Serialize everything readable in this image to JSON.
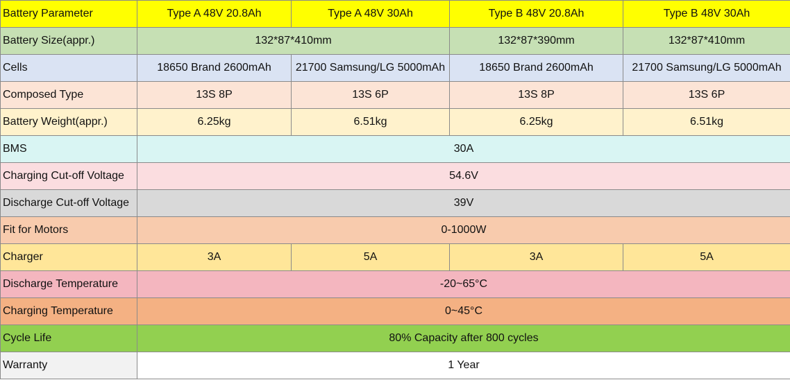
{
  "table": {
    "header": [
      "Battery Parameter",
      "Type A 48V 20.8Ah",
      "Type A 48V 30Ah",
      "Type B 48V 20.8Ah",
      "Type B 48V 30Ah"
    ],
    "rows": [
      {
        "label": "Battery Size(appr.)",
        "values": [
          "132*87*410mm",
          "132*87*390mm",
          "132*87*410mm"
        ]
      },
      {
        "label": "Cells",
        "values": [
          "18650 Brand 2600mAh",
          "21700 Samsung/LG 5000mAh",
          "18650 Brand 2600mAh",
          "21700 Samsung/LG 5000mAh"
        ]
      },
      {
        "label": "Composed Type",
        "values": [
          "13S 8P",
          "13S 6P",
          "13S 8P",
          "13S 6P"
        ]
      },
      {
        "label": "Battery Weight(appr.)",
        "values": [
          "6.25kg",
          "6.51kg",
          "6.25kg",
          "6.51kg"
        ]
      },
      {
        "label": "BMS",
        "values": [
          "30A"
        ]
      },
      {
        "label": "Charging Cut-off Voltage",
        "values": [
          "54.6V"
        ]
      },
      {
        "label": "Discharge Cut-off Voltage",
        "values": [
          "39V"
        ]
      },
      {
        "label": "Fit for Motors",
        "values": [
          "0-1000W"
        ]
      },
      {
        "label": "Charger",
        "values": [
          "3A",
          "5A",
          "3A",
          "5A"
        ]
      },
      {
        "label": "Discharge Temperature",
        "values": [
          "-20~65°C"
        ]
      },
      {
        "label": "Charging Temperature",
        "values": [
          "0~45°C"
        ]
      },
      {
        "label": "Cycle Life",
        "values": [
          "80% Capacity after 800 cycles"
        ]
      },
      {
        "label": "Warranty",
        "values": [
          "1 Year"
        ]
      }
    ]
  },
  "colors": {
    "header": "#ffff00",
    "battery_size": "#c6e0b4",
    "cells": "#dae3f3",
    "composed_type": "#fce4d6",
    "battery_weight": "#fff2cc",
    "bms": "#d9f5f3",
    "charging_cutoff": "#fbdde0",
    "discharge_cutoff": "#d9d9d9",
    "fit_for_motors": "#f8cbad",
    "charger": "#ffe699",
    "discharge_temperature": "#f4b6bf",
    "charging_temperature": "#f4b183",
    "cycle_life": "#92d050",
    "warranty": "#f2f2f2"
  }
}
